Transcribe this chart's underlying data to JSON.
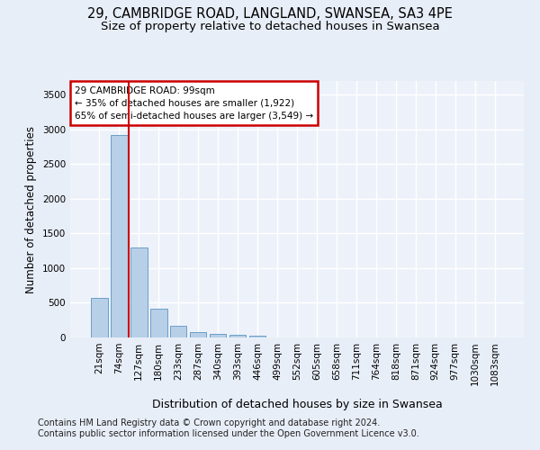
{
  "title1": "29, CAMBRIDGE ROAD, LANGLAND, SWANSEA, SA3 4PE",
  "title2": "Size of property relative to detached houses in Swansea",
  "xlabel": "Distribution of detached houses by size in Swansea",
  "ylabel": "Number of detached properties",
  "categories": [
    "21sqm",
    "74sqm",
    "127sqm",
    "180sqm",
    "233sqm",
    "287sqm",
    "340sqm",
    "393sqm",
    "446sqm",
    "499sqm",
    "552sqm",
    "605sqm",
    "658sqm",
    "711sqm",
    "764sqm",
    "818sqm",
    "871sqm",
    "924sqm",
    "977sqm",
    "1030sqm",
    "1083sqm"
  ],
  "bar_values": [
    570,
    2920,
    1300,
    415,
    170,
    80,
    50,
    35,
    25,
    0,
    0,
    0,
    0,
    0,
    0,
    0,
    0,
    0,
    0,
    0,
    0
  ],
  "bar_color": "#b8cfe8",
  "bar_edge_color": "#6a9ec8",
  "vline_x": 1.5,
  "vline_color": "#cc0000",
  "annotation_text": "29 CAMBRIDGE ROAD: 99sqm\n← 35% of detached houses are smaller (1,922)\n65% of semi-detached houses are larger (3,549) →",
  "annotation_box_facecolor": "#ffffff",
  "annotation_box_edgecolor": "#cc0000",
  "ylim": [
    0,
    3700
  ],
  "yticks": [
    0,
    500,
    1000,
    1500,
    2000,
    2500,
    3000,
    3500
  ],
  "footer_text": "Contains HM Land Registry data © Crown copyright and database right 2024.\nContains public sector information licensed under the Open Government Licence v3.0.",
  "bg_color": "#e8eef8",
  "plot_bg_color": "#edf2fa",
  "grid_color": "#ffffff",
  "title1_fontsize": 10.5,
  "title2_fontsize": 9.5,
  "xlabel_fontsize": 9,
  "ylabel_fontsize": 8.5,
  "tick_fontsize": 7.5,
  "annotation_fontsize": 7.5,
  "footer_fontsize": 7
}
